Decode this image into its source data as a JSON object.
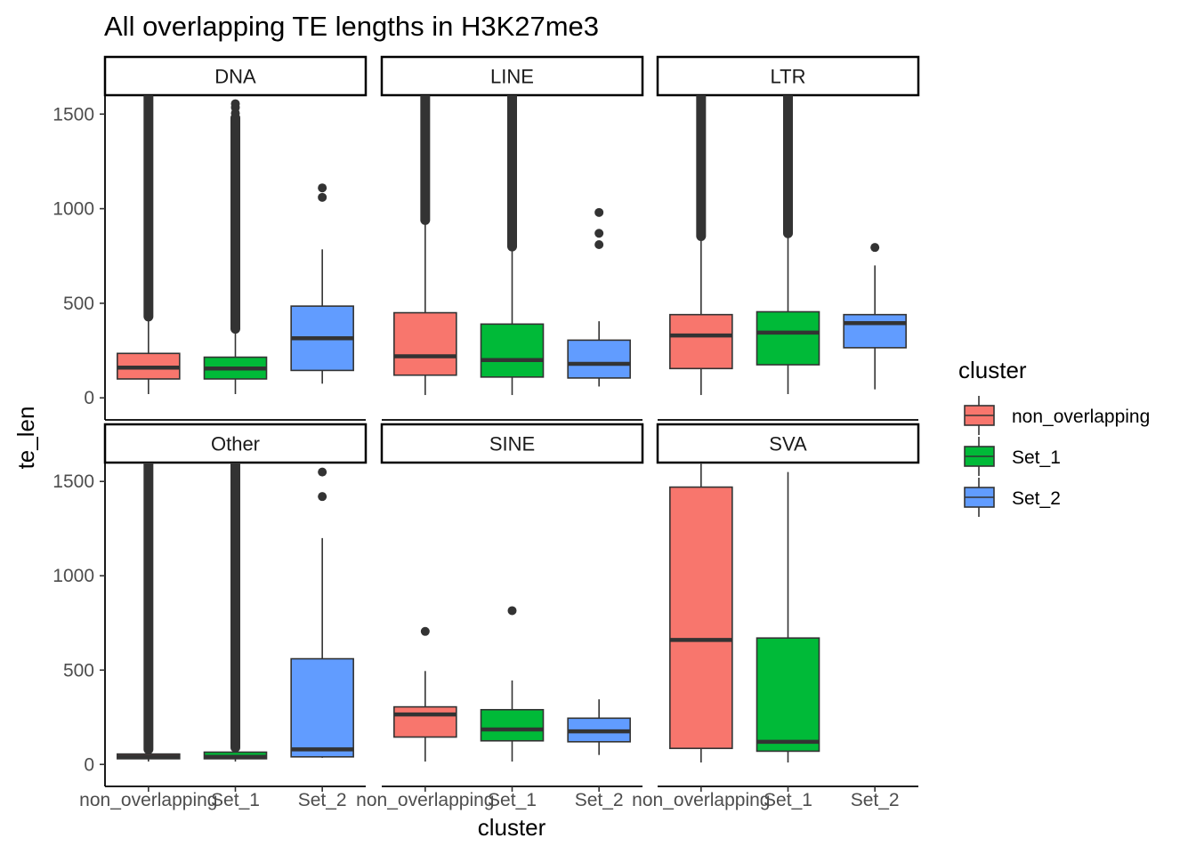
{
  "chart_data": {
    "type": "boxplot",
    "title": "All overlapping TE lengths in H3K27me3",
    "xlabel": "cluster",
    "ylabel": "te_len",
    "ylim": [
      -60,
      1600
    ],
    "yticks": [
      0,
      500,
      1000,
      1500
    ],
    "categories": [
      "non_overlapping",
      "Set_1",
      "Set_2"
    ],
    "colors": {
      "non_overlapping": "#F8766D",
      "Set_1": "#00BA38",
      "Set_2": "#619CFF",
      "line": "#333333"
    },
    "legend": {
      "title": "cluster",
      "position": "right",
      "entries": [
        "non_overlapping",
        "Set_1",
        "Set_2"
      ]
    },
    "facets": [
      {
        "name": "DNA",
        "boxes": [
          {
            "cluster": "non_overlapping",
            "min": 20,
            "q1": 100,
            "median": 160,
            "q3": 235,
            "max": 425,
            "outliers": [],
            "dense_from": 430,
            "dense_to": 1600
          },
          {
            "cluster": "Set_1",
            "min": 20,
            "q1": 100,
            "median": 155,
            "q3": 215,
            "max": 360,
            "outliers": [
              1505,
              1535,
              1555
            ],
            "dense_from": 365,
            "dense_to": 1480
          },
          {
            "cluster": "Set_2",
            "min": 75,
            "q1": 145,
            "median": 315,
            "q3": 485,
            "max": 785,
            "outliers": [
              1060,
              1110
            ],
            "dense_from": null,
            "dense_to": null
          }
        ]
      },
      {
        "name": "LINE",
        "boxes": [
          {
            "cluster": "non_overlapping",
            "min": 15,
            "q1": 120,
            "median": 220,
            "q3": 450,
            "max": 935,
            "outliers": [],
            "dense_from": 940,
            "dense_to": 1600
          },
          {
            "cluster": "Set_1",
            "min": 15,
            "q1": 110,
            "median": 200,
            "q3": 390,
            "max": 795,
            "outliers": [],
            "dense_from": 800,
            "dense_to": 1600
          },
          {
            "cluster": "Set_2",
            "min": 60,
            "q1": 105,
            "median": 180,
            "q3": 305,
            "max": 405,
            "outliers": [
              810,
              870,
              980
            ],
            "dense_from": null,
            "dense_to": null
          }
        ]
      },
      {
        "name": "LTR",
        "boxes": [
          {
            "cluster": "non_overlapping",
            "min": 15,
            "q1": 155,
            "median": 330,
            "q3": 440,
            "max": 850,
            "outliers": [],
            "dense_from": 855,
            "dense_to": 1600
          },
          {
            "cluster": "Set_1",
            "min": 20,
            "q1": 175,
            "median": 345,
            "q3": 455,
            "max": 865,
            "outliers": [],
            "dense_from": 870,
            "dense_to": 1600
          },
          {
            "cluster": "Set_2",
            "min": 45,
            "q1": 265,
            "median": 395,
            "q3": 440,
            "max": 700,
            "outliers": [
              795
            ],
            "dense_from": null,
            "dense_to": null
          }
        ]
      },
      {
        "name": "Other",
        "boxes": [
          {
            "cluster": "non_overlapping",
            "min": 15,
            "q1": 30,
            "median": 40,
            "q3": 55,
            "max": 75,
            "outliers": [],
            "dense_from": 80,
            "dense_to": 1600
          },
          {
            "cluster": "Set_1",
            "min": 15,
            "q1": 30,
            "median": 40,
            "q3": 65,
            "max": 85,
            "outliers": [],
            "dense_from": 90,
            "dense_to": 1600
          },
          {
            "cluster": "Set_2",
            "min": 35,
            "q1": 40,
            "median": 80,
            "q3": 560,
            "max": 1200,
            "outliers": [
              1420,
              1550
            ],
            "dense_from": null,
            "dense_to": null
          }
        ]
      },
      {
        "name": "SINE",
        "boxes": [
          {
            "cluster": "non_overlapping",
            "min": 15,
            "q1": 145,
            "median": 265,
            "q3": 305,
            "max": 495,
            "outliers": [
              705
            ],
            "dense_from": null,
            "dense_to": null
          },
          {
            "cluster": "Set_1",
            "min": 15,
            "q1": 125,
            "median": 185,
            "q3": 290,
            "max": 445,
            "outliers": [
              815
            ],
            "dense_from": null,
            "dense_to": null
          },
          {
            "cluster": "Set_2",
            "min": 50,
            "q1": 120,
            "median": 175,
            "q3": 245,
            "max": 345,
            "outliers": [],
            "dense_from": null,
            "dense_to": null
          }
        ]
      },
      {
        "name": "SVA",
        "boxes": [
          {
            "cluster": "non_overlapping",
            "min": 10,
            "q1": 85,
            "median": 660,
            "q3": 1470,
            "max": 1600,
            "outliers": [],
            "dense_from": null,
            "dense_to": null
          },
          {
            "cluster": "Set_1",
            "min": 10,
            "q1": 70,
            "median": 120,
            "q3": 670,
            "max": 1550,
            "outliers": [],
            "dense_from": null,
            "dense_to": null
          }
        ]
      }
    ]
  }
}
